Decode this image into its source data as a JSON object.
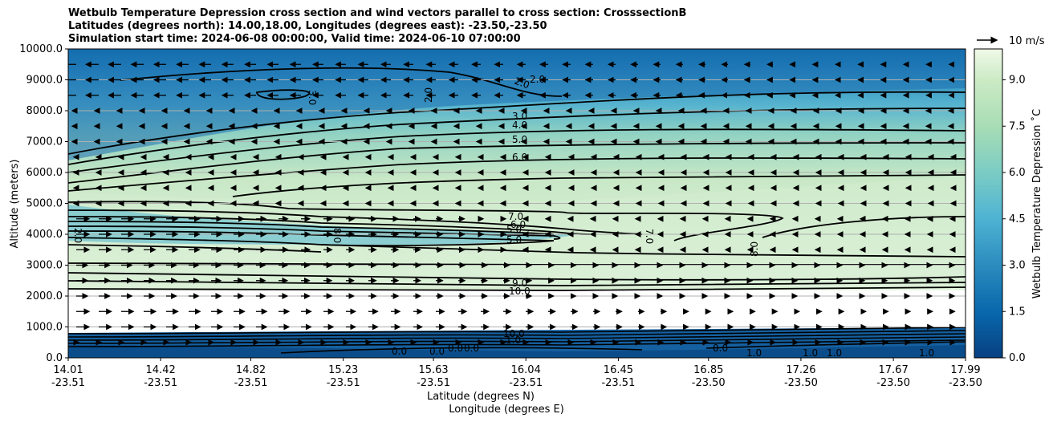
{
  "title_lines": [
    "Wetbulb Temperature Depression cross section and wind vectors parallel to cross section: CrosssectionB",
    "Latitudes (degrees north): 14.00,18.00, Longitudes (degrees east): -23.50,-23.50",
    "Simulation start time: 2024-06-08 00:00:00, Valid time: 2024-06-10 07:00:00"
  ],
  "chart_data": {
    "type": "heatmap",
    "title": "Wetbulb Temperature Depression cross section and wind vectors parallel to cross section: CrosssectionB",
    "ylabel": "Altitude (meters)",
    "xlabel_lat": "Latitude (degrees N)",
    "xlabel_lon": "Longitude (degrees E)",
    "ylim": [
      0,
      10000
    ],
    "y_ticks": [
      "0.0",
      "1000.0",
      "2000.0",
      "3000.0",
      "4000.0",
      "5000.0",
      "6000.0",
      "7000.0",
      "8000.0",
      "9000.0",
      "10000.0"
    ],
    "x_ticks": [
      {
        "lat": "14.01",
        "lon": "-23.51"
      },
      {
        "lat": "14.42",
        "lon": "-23.51"
      },
      {
        "lat": "14.82",
        "lon": "-23.51"
      },
      {
        "lat": "15.23",
        "lon": "-23.51"
      },
      {
        "lat": "15.63",
        "lon": "-23.51"
      },
      {
        "lat": "16.04",
        "lon": "-23.51"
      },
      {
        "lat": "16.45",
        "lon": "-23.51"
      },
      {
        "lat": "16.85",
        "lon": "-23.50"
      },
      {
        "lat": "17.26",
        "lon": "-23.50"
      },
      {
        "lat": "17.67",
        "lon": "-23.50"
      },
      {
        "lat": "17.99",
        "lon": "-23.50"
      }
    ],
    "grid": true,
    "colorbar": {
      "label": "Wetbulb Temperature Depression ˚C",
      "range": [
        0,
        10
      ],
      "ticks": [
        "0.0",
        "1.5",
        "3.0",
        "4.5",
        "6.0",
        "7.5",
        "9.0"
      ],
      "colormap": "GnBu_r"
    },
    "contour_labels": [
      "0.0",
      "1.0",
      "2.0",
      "3.0",
      "4.0",
      "5.0",
      "6.0",
      "7.0",
      "8.0",
      "9.0",
      "10.0"
    ],
    "quiver_key": {
      "label": "10 m/s",
      "speed": 10
    },
    "missing_band_m": [
      900,
      2300
    ]
  }
}
